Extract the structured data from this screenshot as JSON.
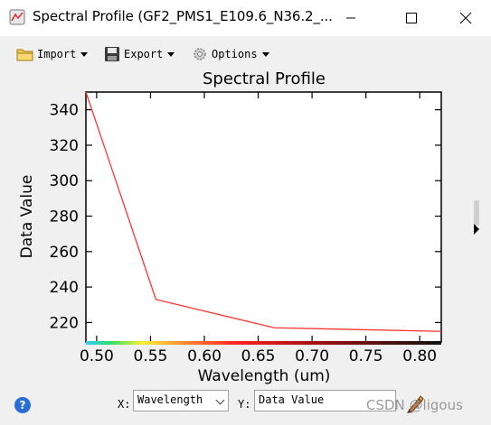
{
  "window": {
    "title": "Spectral Profile (GF2_PMS1_E109.6_N36.2_...",
    "controls": [
      "minimize",
      "maximize",
      "close"
    ]
  },
  "toolbar": {
    "import_label": "Import",
    "export_label": "Export",
    "options_label": "Options"
  },
  "chart_data": {
    "type": "line",
    "title": "Spectral Profile",
    "xlabel": "Wavelength (um)",
    "ylabel": "Data Value",
    "xlim": [
      0.49,
      0.82
    ],
    "ylim": [
      209,
      350
    ],
    "xticks": [
      "0.50",
      "0.55",
      "0.60",
      "0.65",
      "0.70",
      "0.75",
      "0.80"
    ],
    "xtick_values": [
      0.5,
      0.55,
      0.6,
      0.65,
      0.7,
      0.75,
      0.8
    ],
    "yticks": [
      "220",
      "240",
      "260",
      "280",
      "300",
      "320",
      "340"
    ],
    "ytick_values": [
      220,
      240,
      260,
      280,
      300,
      320,
      340
    ],
    "grid": false,
    "series": [
      {
        "x": [
          0.49,
          0.555,
          0.665,
          0.82
        ],
        "y": [
          350,
          233,
          217,
          215
        ],
        "color": "#ff3333"
      }
    ]
  },
  "bottom": {
    "x_tag": "X:",
    "x_select_value": "Wavelength",
    "y_tag": "Y:",
    "y_select_value": "Data Value",
    "help_glyph": "?"
  },
  "watermark": "CSDN @ligous"
}
